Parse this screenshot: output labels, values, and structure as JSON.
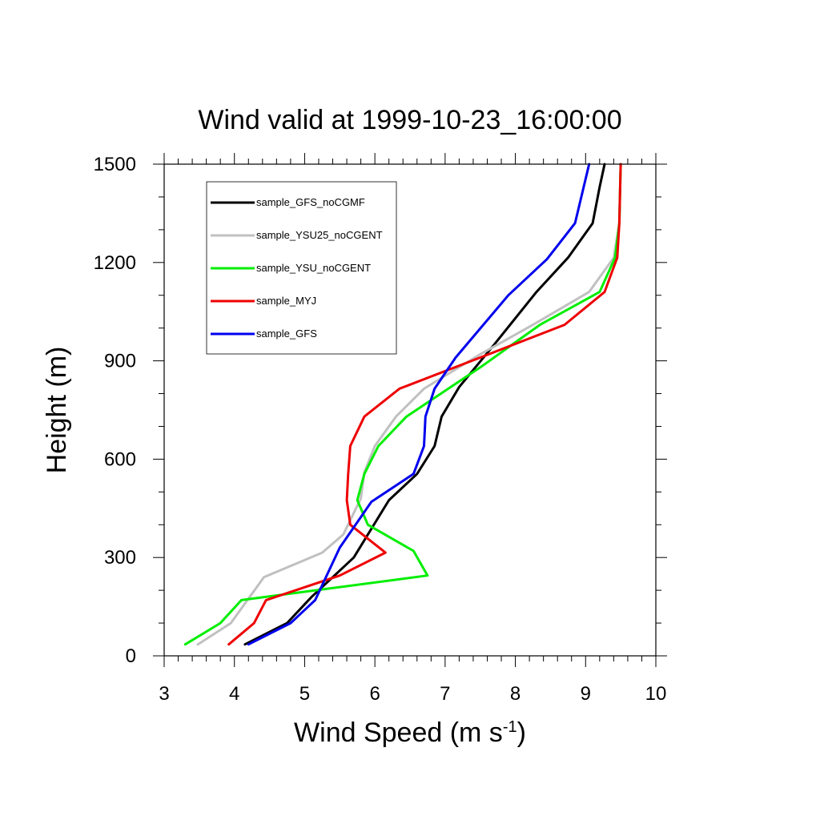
{
  "chart_data": {
    "type": "line",
    "title": "Wind valid at 1999-10-23_16:00:00",
    "xlabel": "Wind Speed (m s",
    "xlabel_sup": "-1",
    "xlabel_suffix": ")",
    "ylabel": "Height (m)",
    "xlim": [
      3,
      10
    ],
    "ylim": [
      0,
      1500
    ],
    "xticks": [
      3,
      4,
      5,
      6,
      7,
      8,
      9,
      10
    ],
    "yticks": [
      0,
      300,
      600,
      900,
      1200,
      1500
    ],
    "grid": false,
    "legend_position": "top-left",
    "series": [
      {
        "name": "sample_GFS_noCGMF",
        "color": "#000000",
        "x": [
          4.15,
          4.75,
          5.1,
          5.7,
          6.2,
          6.6,
          6.85,
          6.95,
          7.2,
          7.7,
          8.3,
          8.75,
          9.1,
          9.2,
          9.27
        ],
        "y": [
          35,
          100,
          180,
          300,
          475,
          555,
          640,
          730,
          820,
          950,
          1110,
          1215,
          1320,
          1430,
          1500
        ]
      },
      {
        "name": "sample_YSU25_noCGENT",
        "color": "#c0c0c0",
        "x": [
          3.48,
          3.95,
          4.42,
          5.25,
          5.55,
          5.8,
          5.85,
          6.0,
          6.3,
          6.7,
          7.5,
          8.25,
          9.05,
          9.4,
          9.48,
          9.5
        ],
        "y": [
          35,
          100,
          240,
          315,
          370,
          480,
          560,
          640,
          730,
          815,
          920,
          1010,
          1110,
          1215,
          1320,
          1500
        ]
      },
      {
        "name": "sample_YSU_noCGENT",
        "color": "#00ee00",
        "x": [
          3.3,
          3.8,
          4.1,
          6.75,
          6.55,
          5.9,
          5.75,
          5.85,
          6.05,
          6.45,
          7.5,
          8.35,
          9.2,
          9.42,
          9.48,
          9.5
        ],
        "y": [
          35,
          100,
          170,
          245,
          320,
          400,
          475,
          555,
          640,
          730,
          880,
          1010,
          1110,
          1215,
          1320,
          1500
        ]
      },
      {
        "name": "sample_MYJ",
        "color": "#ee0000",
        "x": [
          3.92,
          4.28,
          4.45,
          5.5,
          6.15,
          5.65,
          5.6,
          5.62,
          5.65,
          5.85,
          6.35,
          7.5,
          8.7,
          9.27,
          9.45,
          9.48,
          9.5
        ],
        "y": [
          35,
          100,
          170,
          245,
          315,
          400,
          475,
          555,
          640,
          730,
          815,
          910,
          1010,
          1110,
          1215,
          1320,
          1500
        ]
      },
      {
        "name": "sample_GFS",
        "color": "#0000ee",
        "x": [
          4.2,
          4.8,
          5.15,
          5.5,
          5.95,
          6.55,
          6.7,
          6.72,
          6.85,
          7.15,
          7.9,
          8.45,
          8.85,
          9.05
        ],
        "y": [
          35,
          100,
          170,
          330,
          470,
          555,
          640,
          730,
          815,
          910,
          1100,
          1210,
          1320,
          1500
        ]
      }
    ]
  }
}
